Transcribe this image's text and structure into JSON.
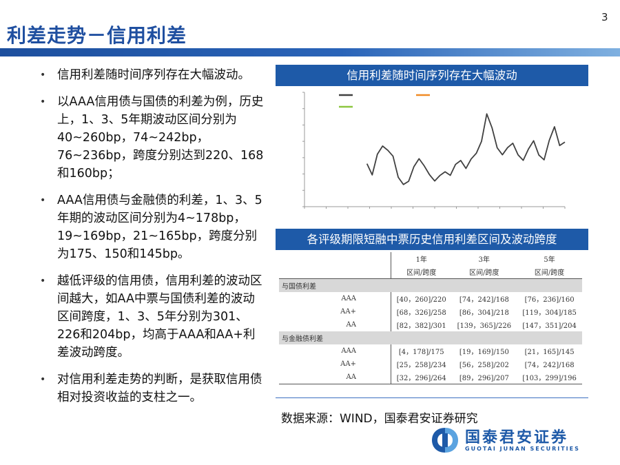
{
  "page_number": "3",
  "title": "利差走势－信用利差",
  "bullets": [
    "信用利差随时间序列存在大幅波动。",
    "以AAA信用债与国债的利差为例，历史上，1、3、5年期波动区间分别为40~260bp，74~242bp，76~236bp，跨度分别达到220、168和160bp；",
    "AAA信用债与金融债的利差，1、3、5年期的波动区间分别为4~178bp，　19~169bp，21~165bp，跨度分别为175、150和145bp。",
    "越低评级的信用债，信用利差的波动区间越大，如AA中票与国债利差的波动区间跨度，1、3、5年分别为301、226和204bp，均高于AAA和AA+利差波动跨度。",
    "对信用利差走势的判断，是获取信用债相对投资收益的支柱之一。"
  ],
  "chart_panel": {
    "title": "信用利差随时间序列存在大幅波动"
  },
  "table_panel": {
    "title": "各评级期限短融中票历史信用利差区间及波动跨度"
  },
  "table": {
    "terms": [
      "1年",
      "3年",
      "5年"
    ],
    "sub_header": "区间/跨度",
    "groups": [
      {
        "name": "与国债利差",
        "rows": [
          {
            "rating": "AAA",
            "cells": [
              "[40，260]/220",
              "[74，242]/168",
              "[76，236]/160"
            ]
          },
          {
            "rating": "AA+",
            "cells": [
              "[68，326]/258",
              "[86，304]/218",
              "[119，304]/185"
            ]
          },
          {
            "rating": "AA",
            "cells": [
              "[82，382]/301",
              "[139，365]/226",
              "[147，351]/204"
            ]
          }
        ]
      },
      {
        "name": "与金融债利差",
        "rows": [
          {
            "rating": "AAA",
            "cells": [
              "[4，178]/175",
              "[19，169]/150",
              "[21，165]/145"
            ]
          },
          {
            "rating": "AA+",
            "cells": [
              "[25，258]/234",
              "[56，258]/202",
              "[74，242]/168"
            ]
          },
          {
            "rating": "AA",
            "cells": [
              "[32，296]/264",
              "[89，296]/207",
              "[103，299]/196"
            ]
          }
        ]
      }
    ]
  },
  "source": "数据来源：WIND，国泰君安证券研究",
  "logo": {
    "cn": "国泰君安证券",
    "en": "GUOTAI  JUNAN  SECURITIES"
  },
  "chart_data": {
    "type": "line",
    "title": "",
    "xlabel": "",
    "ylabel": "",
    "grid": false,
    "legend": "top-left",
    "colors": [
      "#404040",
      "#f08a24",
      "#8cc63f"
    ],
    "x": [
      0,
      1,
      2,
      3,
      4,
      5,
      6,
      7,
      8,
      9,
      10,
      11,
      12,
      13,
      14,
      15,
      16,
      17,
      18,
      19,
      20,
      21,
      22,
      23,
      24,
      25,
      26,
      27,
      28,
      29,
      30,
      31,
      32,
      33,
      34,
      35,
      36,
      37,
      38,
      39,
      40,
      41,
      42,
      43,
      44,
      45,
      46,
      47,
      48,
      49,
      50
    ],
    "series": [
      {
        "values": [
          null,
          null,
          null,
          null,
          null,
          null,
          null,
          null,
          null,
          null,
          null,
          null,
          52,
          40,
          66,
          75,
          68,
          60,
          35,
          28,
          33,
          50,
          58,
          48,
          38,
          32,
          40,
          44,
          38,
          50,
          55,
          47,
          60,
          67,
          80,
          112,
          95,
          72,
          65,
          74,
          78,
          62,
          55,
          70,
          82,
          65,
          58,
          80,
          96,
          74,
          80
        ]
      },
      {
        "values": [
          null,
          null,
          null,
          null,
          null,
          null,
          null,
          null,
          null,
          null,
          null,
          null,
          null,
          null,
          null,
          null,
          null,
          null,
          null,
          null,
          null,
          null,
          null,
          null,
          null,
          null,
          null,
          null,
          null,
          null,
          null,
          null,
          null,
          null,
          null,
          null,
          null,
          null,
          null,
          null,
          null,
          null,
          null,
          null,
          null,
          null,
          null,
          null,
          null,
          null,
          null
        ]
      },
      {
        "values": [
          null,
          null,
          null,
          null,
          null,
          null,
          null,
          null,
          null,
          null,
          null,
          null,
          null,
          null,
          null,
          null,
          null,
          null,
          null,
          null,
          null,
          null,
          null,
          null,
          null,
          null,
          null,
          null,
          null,
          null,
          null,
          null,
          null,
          null,
          null,
          null,
          null,
          null,
          null,
          null,
          null,
          null,
          null,
          null,
          null,
          null,
          null,
          null,
          null,
          null,
          null
        ]
      }
    ],
    "ylim": [
      0,
      140
    ]
  }
}
